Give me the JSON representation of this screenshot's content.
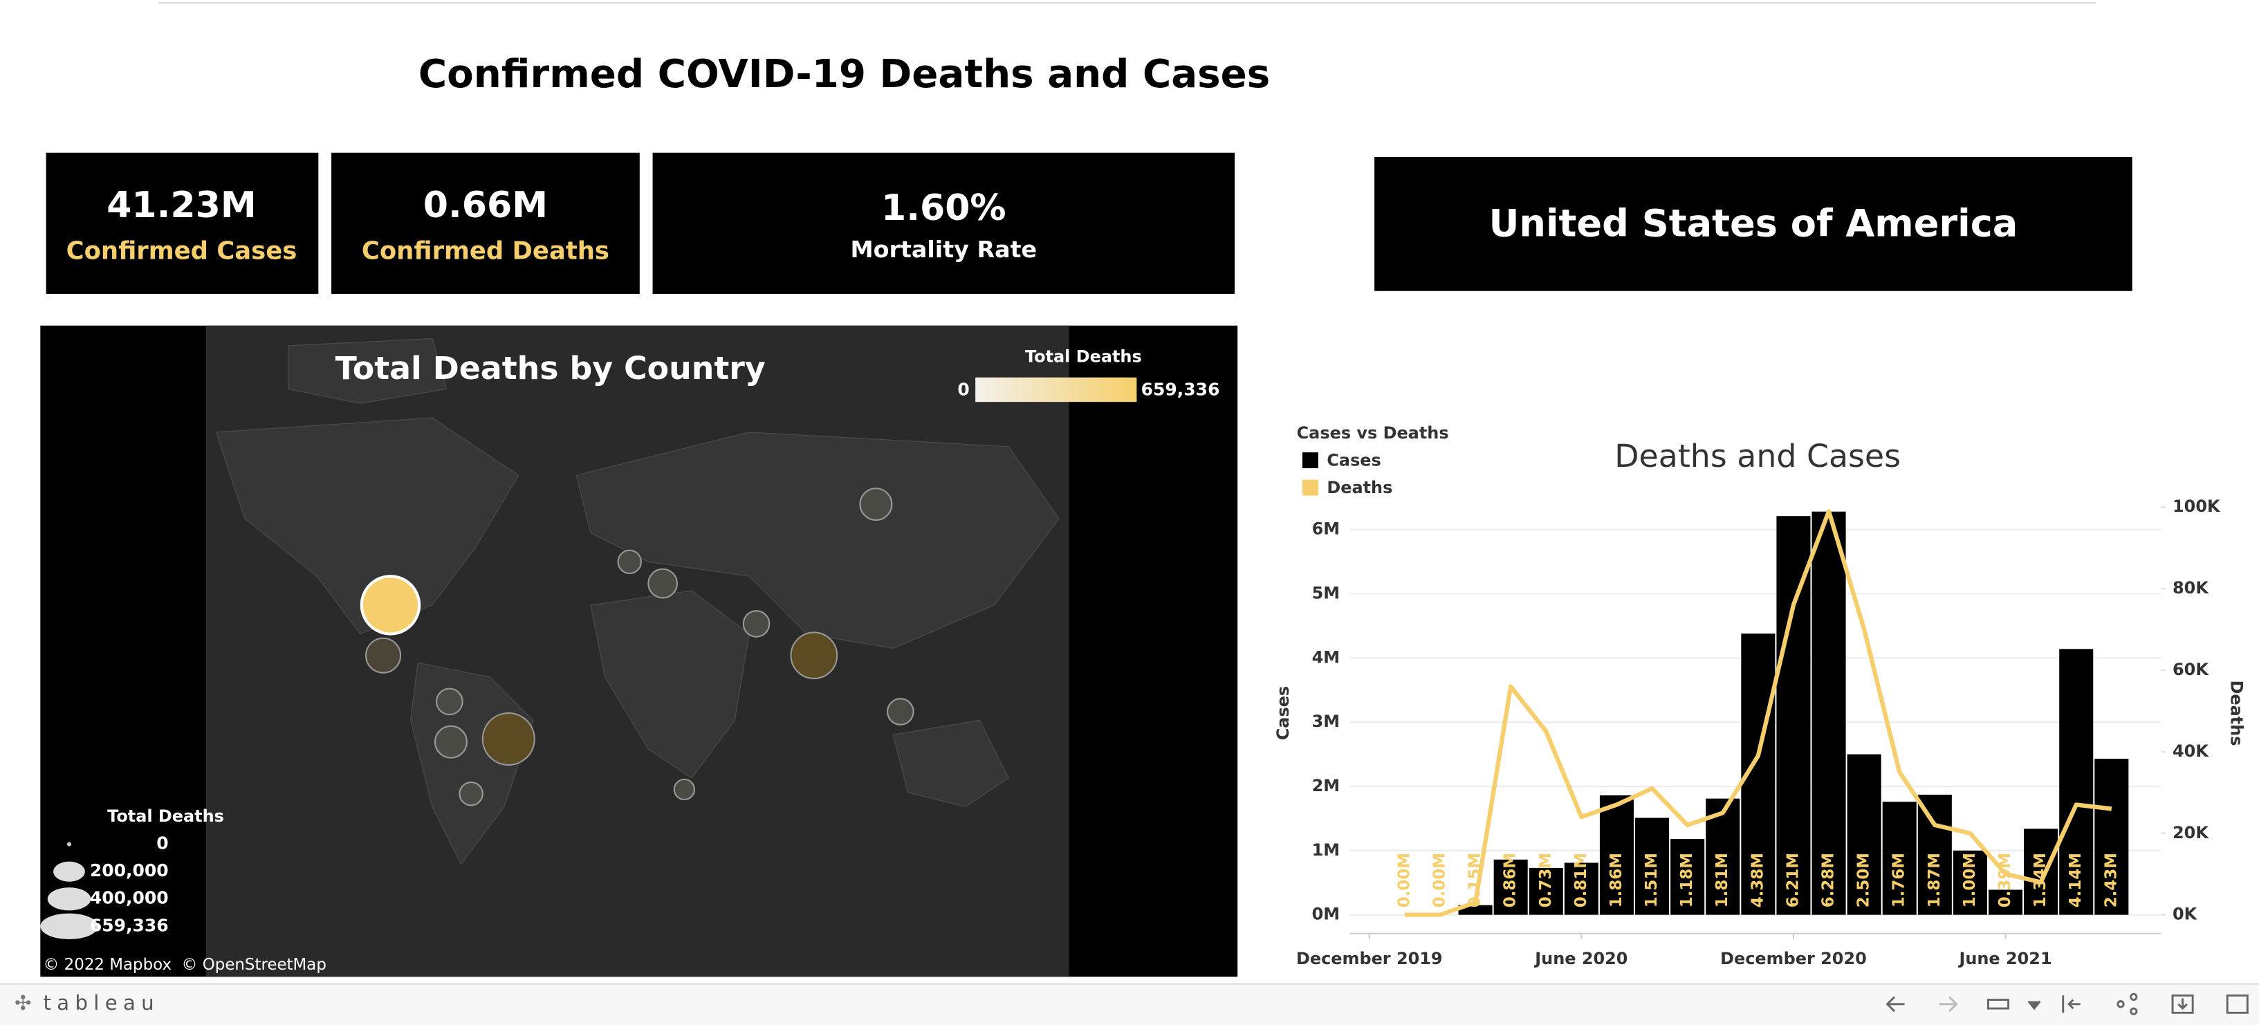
{
  "header": {
    "title": "Confirmed COVID-19 Deaths and Cases"
  },
  "kpis": [
    {
      "value": "41.23M",
      "label": "Confirmed Cases"
    },
    {
      "value": "0.66M",
      "label": "Confirmed Deaths"
    },
    {
      "value": "1.60%",
      "label": "Mortality Rate"
    }
  ],
  "country": "United States of America",
  "map": {
    "title": "Total Deaths by Country",
    "color_legend": {
      "title": "Total Deaths",
      "min_label": "0",
      "max_label": "659,336",
      "colors": [
        "#f3f1ea",
        "#f6cf6c"
      ]
    },
    "size_legend": {
      "title": "Total Deaths",
      "labels": [
        "0",
        "200,000",
        "400,000",
        "659,336"
      ]
    },
    "attribution": "© 2022 Mapbox  © OpenStreetMap"
  },
  "toolbar": {
    "brand": "tableau"
  },
  "chart_data": {
    "type": "combo",
    "title": "Deaths and Cases",
    "legend_title": "Cases vs Deaths",
    "ylabel": "Cases",
    "y2label": "Deaths",
    "x": [
      1,
      2,
      3,
      4,
      5,
      6,
      7,
      8,
      9,
      10,
      11,
      12,
      13,
      14,
      15,
      16,
      17,
      18,
      19,
      20,
      21
    ],
    "xlim": [
      -0.55,
      22.4
    ],
    "xticks": [
      {
        "value": 0,
        "label": "December 2019"
      },
      {
        "value": 6,
        "label": "June 2020"
      },
      {
        "value": 12,
        "label": "December 2020"
      },
      {
        "value": 18,
        "label": "June 2021"
      }
    ],
    "ylim": [
      0,
      6.35
    ],
    "yticks": [
      {
        "value": 0,
        "label": "0M"
      },
      {
        "value": 1,
        "label": "1M"
      },
      {
        "value": 2,
        "label": "2M"
      },
      {
        "value": 3,
        "label": "3M"
      },
      {
        "value": 4,
        "label": "4M"
      },
      {
        "value": 5,
        "label": "5M"
      },
      {
        "value": 6,
        "label": "6M"
      }
    ],
    "y2lim": [
      0,
      100
    ],
    "y2ticks": [
      {
        "value": 0,
        "label": "0K"
      },
      {
        "value": 20,
        "label": "20K"
      },
      {
        "value": 40,
        "label": "40K"
      },
      {
        "value": 60,
        "label": "60K"
      },
      {
        "value": 80,
        "label": "80K"
      },
      {
        "value": 100,
        "label": "100K"
      }
    ],
    "grid": true,
    "series": [
      {
        "name": "Cases",
        "type": "bar",
        "color": "#000000",
        "label_color": "#f6cf6c",
        "values": [
          0.0,
          0.0,
          0.15,
          0.86,
          0.73,
          0.81,
          1.86,
          1.51,
          1.18,
          1.81,
          4.38,
          6.21,
          6.28,
          2.5,
          1.76,
          1.87,
          1.0,
          0.39,
          1.34,
          4.14,
          2.43
        ],
        "value_labels": [
          "0.00M",
          "0.00M",
          "0.15M",
          "0.86M",
          "0.73M",
          "0.81M",
          "1.86M",
          "1.51M",
          "1.18M",
          "1.81M",
          "4.38M",
          "6.21M",
          "6.28M",
          "2.50M",
          "1.76M",
          "1.87M",
          "1.00M",
          "0.39M",
          "1.34M",
          "4.14M",
          "2.43M"
        ]
      },
      {
        "name": "Deaths",
        "type": "line",
        "axis": "y2",
        "color": "#f6cf6c",
        "values": [
          0,
          0,
          3,
          56,
          45,
          24,
          27,
          31,
          22,
          25,
          39,
          76,
          99,
          70,
          35,
          22,
          20,
          10,
          8,
          27,
          26
        ]
      }
    ]
  }
}
